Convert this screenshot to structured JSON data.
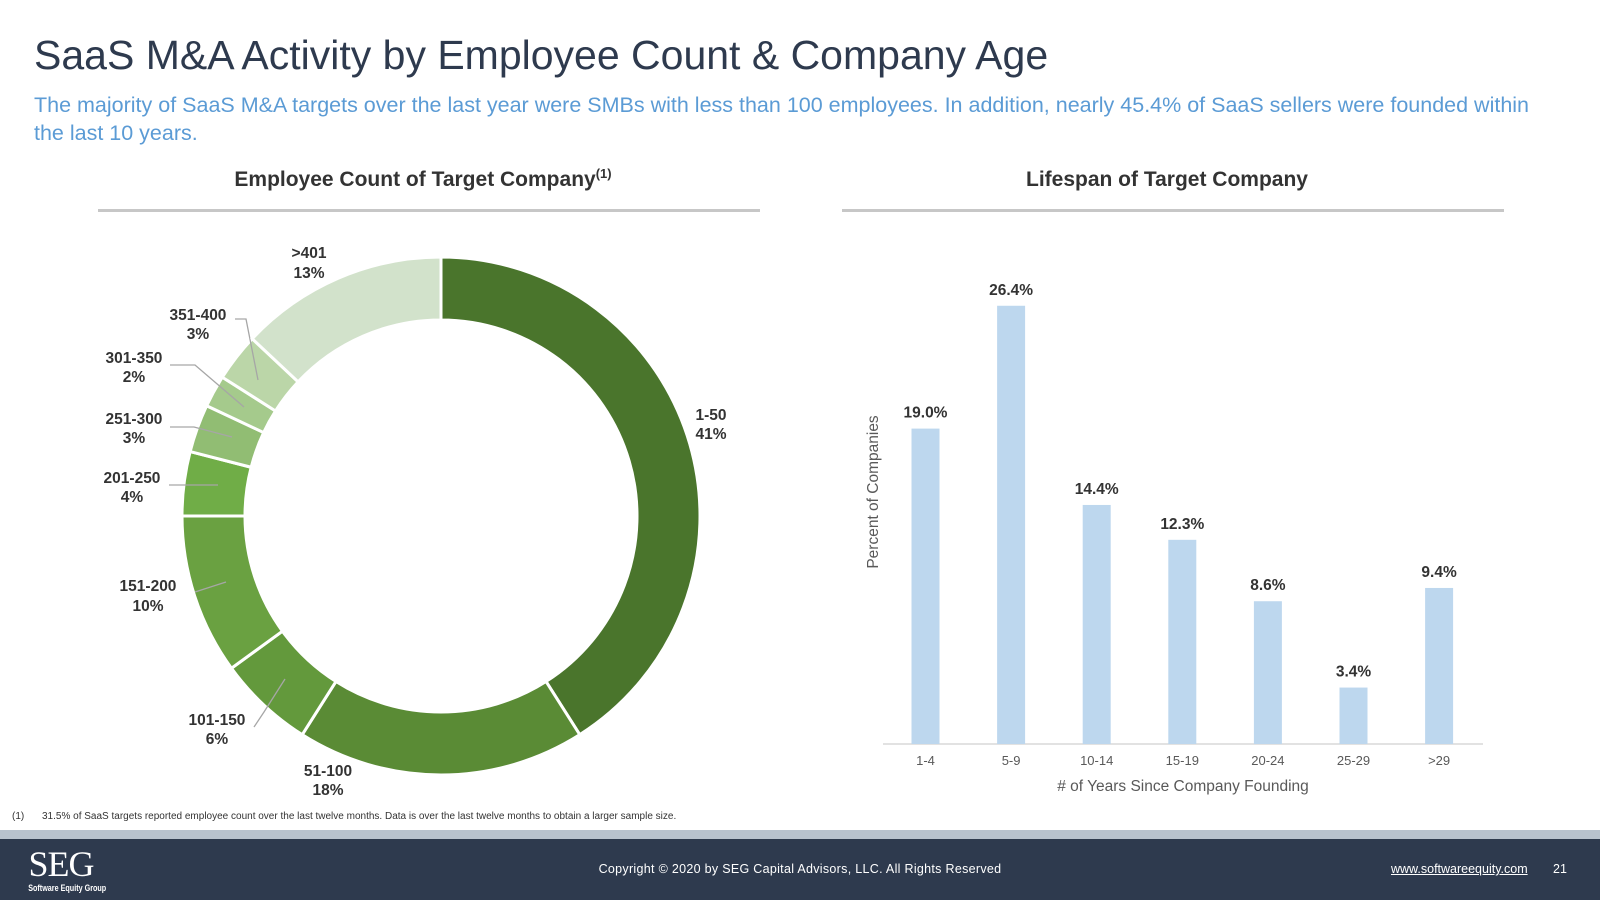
{
  "page": {
    "title": "SaaS M&A Activity by Employee Count & Company Age",
    "subtitle": "The majority of SaaS M&A targets over the last year were SMBs with less than 100 employees. In addition, nearly 45.4% of SaaS sellers were founded within the last 10 years."
  },
  "colors": {
    "title": "#2e3a4e",
    "subtitle": "#5b9bd5",
    "bar": "#bdd7ee",
    "footer": "#2e3a4e"
  },
  "chart_data": [
    {
      "type": "pie",
      "title": "Employee Count of Target Company",
      "title_superscript": "(1)",
      "categories": [
        "1-50",
        "51-100",
        "101-150",
        "151-200",
        "201-250",
        "251-300",
        "301-350",
        "351-400",
        ">401"
      ],
      "values": [
        41,
        18,
        6,
        10,
        4,
        3,
        2,
        3,
        13
      ],
      "value_labels": [
        "41%",
        "18%",
        "6%",
        "10%",
        "4%",
        "3%",
        "2%",
        "3%",
        "13%"
      ],
      "colors": [
        "#4a752c",
        "#5a8b35",
        "#63993c",
        "#6aa141",
        "#70ad47",
        "#91bd73",
        "#a5ca8c",
        "#bbd6a8",
        "#d2e2cb"
      ],
      "donut": true
    },
    {
      "type": "bar",
      "title": "Lifespan of Target Company",
      "categories": [
        "1-4",
        "5-9",
        "10-14",
        "15-19",
        "20-24",
        "25-29",
        ">29"
      ],
      "values": [
        19.0,
        26.4,
        14.4,
        12.3,
        8.6,
        3.4,
        9.4
      ],
      "value_labels": [
        "19.0%",
        "26.4%",
        "14.4%",
        "12.3%",
        "8.6%",
        "3.4%",
        "9.4%"
      ],
      "xlabel": "# of Years Since Company Founding",
      "ylabel": "Percent of Companies",
      "ylim": [
        0,
        30
      ],
      "grid": false,
      "legend": "none"
    }
  ],
  "footnote": {
    "number": "(1)",
    "text": "31.5% of SaaS targets reported employee count over the last twelve months. Data is over the last twelve months to obtain a larger sample size."
  },
  "footer": {
    "logo_text": "SEG",
    "logo_subtext": "Software Equity Group",
    "copyright": "Copyright © 2020 by SEG Capital Advisors, LLC. All Rights Reserved",
    "website": "www.softwareequity.com",
    "page_number": "21"
  }
}
